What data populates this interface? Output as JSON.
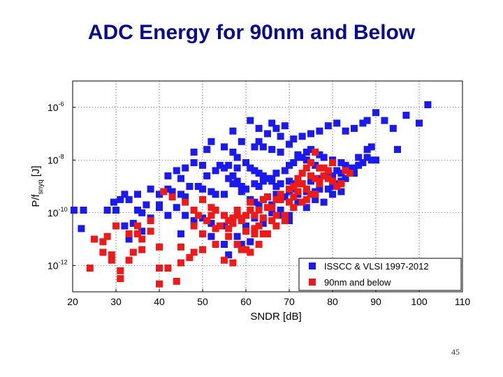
{
  "title": "ADC Energy for 90nm and Below",
  "page_number": "45",
  "colors": {
    "title": "#0a0a8c",
    "series_blue": "#1a1aee",
    "series_red": "#ee1a1a"
  },
  "chart_data": {
    "type": "scatter",
    "title": "ADC Energy for 90nm and Below",
    "xlabel": "SNDR [dB]",
    "ylabel_main": "P/f",
    "ylabel_sub": "snyq",
    "ylabel_unit": "[J]",
    "xlim": [
      20,
      110
    ],
    "ylim": [
      -13,
      -5
    ],
    "y_scale": "log10",
    "x_ticks": [
      "20",
      "30",
      "40",
      "50",
      "60",
      "70",
      "80",
      "90",
      "100",
      "110"
    ],
    "y_ticks": [
      {
        "base": "10",
        "exp": "-6",
        "value": -6
      },
      {
        "base": "10",
        "exp": "-8",
        "value": -8
      },
      {
        "base": "10",
        "exp": "-10",
        "value": -10
      },
      {
        "base": "10",
        "exp": "-12",
        "value": -12
      }
    ],
    "grid": true,
    "legend_position": "bottom-right",
    "series": [
      {
        "name": "ISSCC & VLSI 1997-2012",
        "color": "#1a1aee",
        "points": [
          [
            20.3,
            -9.9
          ],
          [
            22.5,
            -9.9
          ],
          [
            22,
            -10.6
          ],
          [
            29.5,
            -9.6
          ],
          [
            31,
            -9.5
          ],
          [
            33,
            -9.5
          ],
          [
            35,
            -9.3
          ],
          [
            32,
            -9.3
          ],
          [
            30,
            -9.9
          ],
          [
            28,
            -9.9
          ],
          [
            35,
            -9.9
          ],
          [
            37,
            -9.7
          ],
          [
            38,
            -9.1
          ],
          [
            40,
            -9.3
          ],
          [
            42,
            -9.1
          ],
          [
            43,
            -9.2
          ],
          [
            45,
            -9.3
          ],
          [
            46,
            -9.4
          ],
          [
            47,
            -9
          ],
          [
            49,
            -9
          ],
          [
            50,
            -9.1
          ],
          [
            52,
            -9.2
          ],
          [
            53,
            -9.3
          ],
          [
            55,
            -9.3
          ],
          [
            57,
            -8.9
          ],
          [
            58,
            -8.8
          ],
          [
            59,
            -9
          ],
          [
            60,
            -9.1
          ],
          [
            62,
            -8.9
          ],
          [
            63,
            -9
          ],
          [
            64,
            -8.8
          ],
          [
            66,
            -8.8
          ],
          [
            67,
            -9
          ],
          [
            68,
            -8.9
          ],
          [
            70,
            -8.8
          ],
          [
            71,
            -8.9
          ],
          [
            73,
            -8.9
          ],
          [
            75,
            -8.8
          ],
          [
            76,
            -9.2
          ],
          [
            77,
            -8.7
          ],
          [
            78,
            -8.6
          ],
          [
            80,
            -8.6
          ],
          [
            82,
            -8.5
          ],
          [
            84,
            -8.4
          ],
          [
            85,
            -8.3
          ],
          [
            86,
            -8.2
          ],
          [
            62,
            -7.5
          ],
          [
            63,
            -7.3
          ],
          [
            64,
            -7.5
          ],
          [
            66,
            -7.6
          ],
          [
            68,
            -7.7
          ],
          [
            70,
            -7.4
          ],
          [
            72,
            -7.8
          ],
          [
            74,
            -7.7
          ],
          [
            75,
            -7.6
          ],
          [
            77,
            -7.8
          ],
          [
            78,
            -7.9
          ],
          [
            80,
            -8
          ],
          [
            82,
            -8.1
          ],
          [
            83,
            -8.2
          ],
          [
            84,
            -8.3
          ],
          [
            86,
            -7.9
          ],
          [
            88,
            -7.9
          ],
          [
            89,
            -8
          ],
          [
            90,
            -8
          ],
          [
            55,
            -7.5
          ],
          [
            57,
            -7.7
          ],
          [
            58,
            -7.9
          ],
          [
            60,
            -8.1
          ],
          [
            61,
            -8.3
          ],
          [
            62,
            -8.4
          ],
          [
            63,
            -8.5
          ],
          [
            64,
            -8.6
          ],
          [
            65,
            -8.7
          ],
          [
            66,
            -8.7
          ],
          [
            67,
            -8.5
          ],
          [
            69,
            -8.4
          ],
          [
            70,
            -8.2
          ],
          [
            71,
            -8.1
          ],
          [
            72,
            -7.9
          ],
          [
            73,
            -7.9
          ],
          [
            74,
            -8
          ],
          [
            75,
            -8.1
          ],
          [
            76,
            -8.2
          ],
          [
            77,
            -8.3
          ],
          [
            79,
            -8.5
          ],
          [
            80,
            -8.6
          ],
          [
            81,
            -8.4
          ],
          [
            55,
            -8.3
          ],
          [
            56,
            -8.2
          ],
          [
            57,
            -8.6
          ],
          [
            58,
            -8.9
          ],
          [
            59,
            -9.2
          ],
          [
            61,
            -9.5
          ],
          [
            62,
            -9.6
          ],
          [
            63,
            -9.7
          ],
          [
            64,
            -9.5
          ],
          [
            65,
            -9.4
          ],
          [
            67,
            -9.3
          ],
          [
            68,
            -9.5
          ],
          [
            69,
            -9.4
          ],
          [
            70,
            -9.2
          ],
          [
            71,
            -9.1
          ],
          [
            72,
            -9.3
          ],
          [
            74,
            -9.2
          ],
          [
            76,
            -9.3
          ],
          [
            77,
            -9.1
          ],
          [
            79,
            -9.1
          ],
          [
            80,
            -9
          ],
          [
            81,
            -8.9
          ],
          [
            82,
            -8.8
          ],
          [
            83,
            -8.7
          ],
          [
            85,
            -8.5
          ],
          [
            87,
            -8.1
          ],
          [
            88,
            -7.6
          ],
          [
            89,
            -7.5
          ],
          [
            65,
            -7
          ],
          [
            67,
            -6.8
          ],
          [
            69,
            -6.7
          ],
          [
            71,
            -7.2
          ],
          [
            73,
            -7.1
          ],
          [
            75,
            -7
          ],
          [
            77,
            -6.9
          ],
          [
            79,
            -6.7
          ],
          [
            81,
            -6.6
          ],
          [
            83,
            -6.9
          ],
          [
            85,
            -6.8
          ],
          [
            87,
            -6.6
          ],
          [
            88,
            -6.5
          ],
          [
            90,
            -6.2
          ],
          [
            92,
            -6.5
          ],
          [
            94,
            -6.8
          ],
          [
            95,
            -7.6
          ],
          [
            97,
            -6.3
          ],
          [
            100,
            -6.6
          ],
          [
            102,
            -5.9
          ],
          [
            61,
            -6.5
          ],
          [
            63,
            -6.8
          ],
          [
            66,
            -6.6
          ],
          [
            68,
            -7.1
          ],
          [
            59,
            -7.3
          ],
          [
            57,
            -6.9
          ],
          [
            52,
            -7.3
          ],
          [
            51,
            -7.6
          ],
          [
            48,
            -7.7
          ],
          [
            46,
            -8.3
          ],
          [
            44,
            -8.4
          ],
          [
            42,
            -8.6
          ],
          [
            45,
            -8.7
          ],
          [
            48,
            -8.1
          ],
          [
            50,
            -8.2
          ],
          [
            51,
            -8.6
          ],
          [
            53,
            -8.4
          ],
          [
            54,
            -8.2
          ],
          [
            56,
            -8.7
          ],
          [
            58,
            -8.3
          ],
          [
            40,
            -9.8
          ],
          [
            44,
            -9.8
          ],
          [
            46,
            -10.1
          ],
          [
            48,
            -10.3
          ],
          [
            50,
            -10.2
          ],
          [
            52,
            -10.4
          ],
          [
            55,
            -10.5
          ],
          [
            57,
            -10.3
          ],
          [
            58,
            -10.9
          ],
          [
            60,
            -10.5
          ],
          [
            62,
            -10.2
          ],
          [
            64,
            -10.2
          ],
          [
            66,
            -10
          ],
          [
            68,
            -9.9
          ],
          [
            70,
            -10.3
          ],
          [
            72,
            -9.6
          ],
          [
            74,
            -9.8
          ],
          [
            76,
            -9.5
          ],
          [
            78,
            -9.6
          ],
          [
            80,
            -9.3
          ],
          [
            82,
            -9.2
          ],
          [
            32,
            -10.5
          ],
          [
            34,
            -10.4
          ],
          [
            36,
            -10.7
          ],
          [
            38,
            -10.2
          ],
          [
            42,
            -10.1
          ],
          [
            45,
            -10.8
          ],
          [
            52,
            -10.9
          ],
          [
            55,
            -11.2
          ],
          [
            56,
            -11.6
          ],
          [
            59,
            -11.2
          ],
          [
            61,
            -11.1
          ],
          [
            64,
            -10.4
          ],
          [
            66,
            -9.7
          ],
          [
            68,
            -10.1
          ],
          [
            70,
            -10.1
          ],
          [
            33,
            -11
          ],
          [
            36,
            -10
          ],
          [
            40,
            -9.7
          ]
        ]
      },
      {
        "name": "90nm and below",
        "color": "#ee1a1a",
        "points": [
          [
            24,
            -12.1
          ],
          [
            27,
            -11.5
          ],
          [
            29,
            -11.8
          ],
          [
            31,
            -12.2
          ],
          [
            33,
            -11.8
          ],
          [
            31,
            -12.5
          ],
          [
            30,
            -10.5
          ],
          [
            33,
            -10.8
          ],
          [
            35,
            -10.8
          ],
          [
            36,
            -11.4
          ],
          [
            38,
            -10.7
          ],
          [
            40,
            -11.3
          ],
          [
            40,
            -12.7
          ],
          [
            44,
            -12.6
          ],
          [
            41,
            -9.2
          ],
          [
            43,
            -9.4
          ],
          [
            46,
            -9.6
          ],
          [
            48,
            -9.9
          ],
          [
            49,
            -10.1
          ],
          [
            51,
            -10.3
          ],
          [
            52,
            -10.1
          ],
          [
            53,
            -10.6
          ],
          [
            54,
            -10.5
          ],
          [
            56,
            -10.3
          ],
          [
            57,
            -10.2
          ],
          [
            58,
            -10.1
          ],
          [
            59,
            -10.3
          ],
          [
            60,
            -10.1
          ],
          [
            61,
            -9.9
          ],
          [
            62,
            -10.1
          ],
          [
            63,
            -9.9
          ],
          [
            64,
            -9.5
          ],
          [
            65,
            -9.4
          ],
          [
            66,
            -9.8
          ],
          [
            67,
            -9.5
          ],
          [
            68,
            -9.3
          ],
          [
            70,
            -9.1
          ],
          [
            71,
            -9
          ],
          [
            72,
            -8.9
          ],
          [
            73,
            -8.5
          ],
          [
            74,
            -8.3
          ],
          [
            75,
            -8.1
          ],
          [
            76,
            -7.7
          ],
          [
            77,
            -8.3
          ],
          [
            78,
            -8.6
          ],
          [
            80,
            -8.8
          ],
          [
            82,
            -8.9
          ],
          [
            84,
            -8.5
          ],
          [
            50,
            -9.5
          ],
          [
            52,
            -9.8
          ],
          [
            53,
            -9.9
          ],
          [
            55,
            -10.1
          ],
          [
            56,
            -10.6
          ],
          [
            57,
            -10.4
          ],
          [
            58,
            -9.9
          ],
          [
            59,
            -10.2
          ],
          [
            60,
            -10.7
          ],
          [
            61,
            -9.6
          ],
          [
            62,
            -10.8
          ],
          [
            63,
            -10.5
          ],
          [
            64,
            -10.2
          ],
          [
            65,
            -9.8
          ],
          [
            67,
            -10.1
          ],
          [
            69,
            -10.3
          ],
          [
            71,
            -9.4
          ],
          [
            72,
            -8.7
          ],
          [
            73,
            -8.9
          ],
          [
            74,
            -9.1
          ],
          [
            75,
            -8.6
          ],
          [
            76,
            -9.3
          ],
          [
            77,
            -8.8
          ],
          [
            78,
            -8.3
          ],
          [
            79,
            -8.7
          ],
          [
            81,
            -9
          ],
          [
            83,
            -8.4
          ],
          [
            25,
            -11
          ],
          [
            27,
            -11.1
          ],
          [
            28,
            -10.9
          ],
          [
            29,
            -11.6
          ],
          [
            34,
            -11.5
          ],
          [
            36,
            -11
          ],
          [
            42,
            -12.1
          ],
          [
            45,
            -11.3
          ],
          [
            47,
            -11.7
          ],
          [
            48,
            -11.5
          ],
          [
            50,
            -11.4
          ],
          [
            53,
            -11.2
          ],
          [
            55,
            -11.8
          ],
          [
            57,
            -11.9
          ],
          [
            59,
            -11.4
          ],
          [
            61,
            -11.5
          ],
          [
            63,
            -11.2
          ],
          [
            65,
            -10.8
          ],
          [
            67,
            -10.5
          ],
          [
            69,
            -10.1
          ],
          [
            71,
            -9.8
          ],
          [
            73,
            -9.6
          ],
          [
            75,
            -9.3
          ],
          [
            77,
            -8.9
          ],
          [
            79,
            -8.4
          ],
          [
            80,
            -8.1
          ],
          [
            56,
            -10.9
          ],
          [
            58,
            -11.2
          ],
          [
            60,
            -11.4
          ],
          [
            62,
            -10.6
          ],
          [
            64,
            -10.8
          ],
          [
            66,
            -10.3
          ],
          [
            68,
            -9.5
          ],
          [
            70,
            -9.6
          ],
          [
            72,
            -9.2
          ],
          [
            74,
            -9.5
          ],
          [
            76,
            -8.7
          ],
          [
            48,
            -10.5
          ],
          [
            50,
            -10.8
          ],
          [
            45,
            -11.9
          ],
          [
            38,
            -10.3
          ],
          [
            35,
            -10.5
          ],
          [
            40,
            -12.1
          ]
        ]
      }
    ]
  }
}
